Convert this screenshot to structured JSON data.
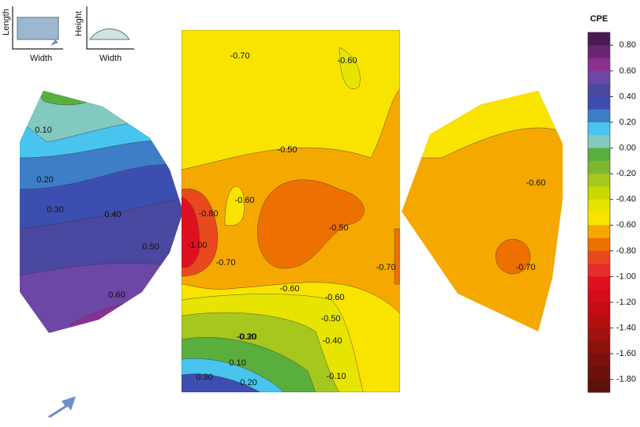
{
  "chart_data": {
    "type": "contour",
    "colorbar_title": "CPE",
    "inset_labels": [
      "Length",
      "Width",
      "Height",
      "Width"
    ],
    "ylim": [
      -1.9,
      0.9
    ],
    "colors": [
      "#4b1a55",
      "#6a2570",
      "#8a3090",
      "#6d46a6",
      "#4a48a0",
      "#3c4fb0",
      "#3e7dc8",
      "#48c4ef",
      "#82c9c0",
      "#5aae3e",
      "#7cb82e",
      "#a6c81e",
      "#c8d800",
      "#e6e400",
      "#f8e400",
      "#f5a800",
      "#ee7000",
      "#e84a1e",
      "#e62c2c",
      "#e01020",
      "#d40c18",
      "#c40c14",
      "#b4100f",
      "#a0120f",
      "#8c120e",
      "#7a120d",
      "#6c110c",
      "#5e100b"
    ],
    "yticks": [
      {
        "value": 0.8,
        "label": "0.80"
      },
      {
        "value": 0.6,
        "label": "0.60"
      },
      {
        "value": 0.4,
        "label": "0.40"
      },
      {
        "value": 0.2,
        "label": "0.20"
      },
      {
        "value": 0,
        "label": "0.00"
      },
      {
        "value": -0.2,
        "label": "-0.20"
      },
      {
        "value": -0.4,
        "label": "-0.40"
      },
      {
        "value": -0.6,
        "label": "-0.60"
      },
      {
        "value": -0.8,
        "label": "-0.80"
      },
      {
        "value": -1,
        "label": "-1.00"
      },
      {
        "value": -1.2,
        "label": "-1.20"
      },
      {
        "value": -1.4,
        "label": "-1.40"
      },
      {
        "value": -1.6,
        "label": "-1.60"
      },
      {
        "value": -1.8,
        "label": "-1.80"
      }
    ],
    "annotations": [
      "0.10",
      "0.20",
      "0.30",
      "0.40",
      "0.50",
      "0.60",
      "-0.80",
      "-1.00",
      "-0.70",
      "-0.60",
      "-0.70",
      "-0.60",
      "-0.50",
      "-0.50",
      "-0.60",
      "-0.70",
      "-0.60",
      "-0.50",
      "-0.40",
      "-0.30",
      "-0.20",
      "-0.10",
      "0.10",
      "0.20",
      "0.30",
      "-0.60",
      "-0.70"
    ]
  }
}
